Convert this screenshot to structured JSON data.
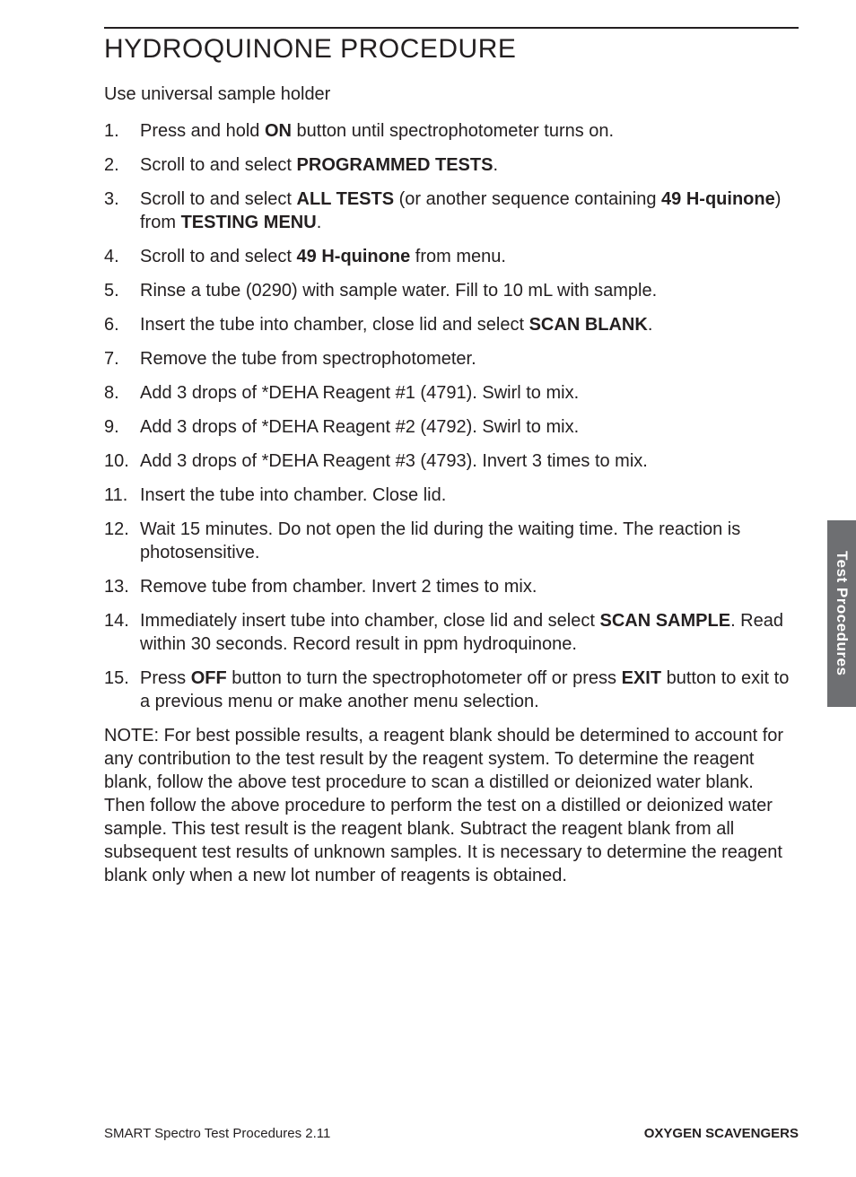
{
  "title": "HYDROQUINONE PROCEDURE",
  "intro": "Use universal sample holder",
  "steps": [
    {
      "n": "1.",
      "segs": [
        {
          "t": "Press and hold "
        },
        {
          "t": "ON",
          "b": true
        },
        {
          "t": " button until spectrophotometer turns on."
        }
      ]
    },
    {
      "n": "2.",
      "segs": [
        {
          "t": "Scroll to and select "
        },
        {
          "t": "PROGRAMMED TESTS",
          "b": true
        },
        {
          "t": "."
        }
      ]
    },
    {
      "n": "3.",
      "segs": [
        {
          "t": "Scroll to and select "
        },
        {
          "t": "ALL TESTS",
          "b": true
        },
        {
          "t": "  (or another sequence containing "
        },
        {
          "t": "49 H-quinone",
          "b": true
        },
        {
          "t": ") from "
        },
        {
          "t": "TESTING MENU",
          "b": true
        },
        {
          "t": "."
        }
      ]
    },
    {
      "n": "4.",
      "segs": [
        {
          "t": "Scroll to and select "
        },
        {
          "t": "49 H-quinone",
          "b": true
        },
        {
          "t": "  from menu."
        }
      ]
    },
    {
      "n": "5.",
      "segs": [
        {
          "t": "Rinse a tube (0290) with sample water. Fill to 10 mL with sample."
        }
      ]
    },
    {
      "n": "6.",
      "segs": [
        {
          "t": "Insert the tube into chamber, close lid and select "
        },
        {
          "t": "SCAN BLANK",
          "b": true
        },
        {
          "t": "."
        }
      ]
    },
    {
      "n": "7.",
      "segs": [
        {
          "t": "Remove the tube from spectrophotometer."
        }
      ]
    },
    {
      "n": "8.",
      "segs": [
        {
          "t": "Add 3 drops of *DEHA Reagent #1 (4791). Swirl to mix."
        }
      ]
    },
    {
      "n": "9.",
      "segs": [
        {
          "t": "Add 3 drops of *DEHA Reagent #2 (4792). Swirl to mix."
        }
      ]
    },
    {
      "n": "10.",
      "segs": [
        {
          "t": "Add 3 drops of *DEHA Reagent #3 (4793). Invert 3 times to mix."
        }
      ]
    },
    {
      "n": "11.",
      "segs": [
        {
          "t": "Insert the tube into chamber. Close lid."
        }
      ]
    },
    {
      "n": "12.",
      "segs": [
        {
          "t": "Wait 15 minutes. Do not open the lid during the waiting time. The reaction is photosensitive."
        }
      ]
    },
    {
      "n": "13.",
      "segs": [
        {
          "t": "Remove tube from chamber. Invert 2 times to mix."
        }
      ]
    },
    {
      "n": "14.",
      "segs": [
        {
          "t": "Immediately insert tube into chamber, close lid and select "
        },
        {
          "t": "SCAN SAMPLE",
          "b": true
        },
        {
          "t": ". Read within 30 seconds. Record result in ppm hydroquinone."
        }
      ]
    },
    {
      "n": "15.",
      "segs": [
        {
          "t": "Press "
        },
        {
          "t": "OFF",
          "b": true
        },
        {
          "t": " button to turn the spectrophotometer off or press "
        },
        {
          "t": "EXIT",
          "b": true
        },
        {
          "t": " button to exit to a previous menu or make another menu selection."
        }
      ]
    }
  ],
  "note": "NOTE:  For best possible results, a reagent blank should be determined to account for any contribution to the test result by the reagent system. To determine the reagent blank, follow the above test procedure to scan a distilled or deionized water blank. Then follow the above procedure to perform the test on a distilled or deionized water sample. This test result is the reagent blank. Subtract the reagent blank from all subsequent test results of unknown samples. It is necessary to determine the reagent blank only when a new lot number of reagents is obtained.",
  "side_tab": "Test Procedures",
  "footer_left": "SMART Spectro Test Procedures 2.11",
  "footer_right": "OXYGEN SCAVENGERS",
  "colors": {
    "text": "#231f20",
    "tab_bg": "#6e6f72",
    "tab_text": "#ffffff",
    "page_bg": "#ffffff"
  }
}
